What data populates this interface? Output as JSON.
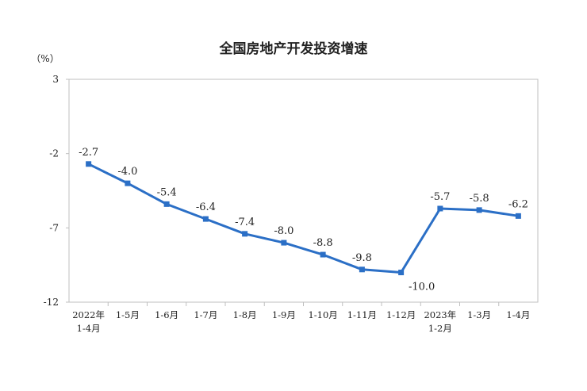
{
  "chart_data": {
    "type": "line",
    "title": "全国房地产开发投资增速",
    "ylabel": "（%）",
    "xlabel": "",
    "ylim": [
      -12,
      3
    ],
    "yticks": [
      3,
      -2,
      -7,
      -12
    ],
    "grid": false,
    "categories": [
      [
        "2022年",
        "1-4月"
      ],
      [
        "1-5月"
      ],
      [
        "1-6月"
      ],
      [
        "1-7月"
      ],
      [
        "1-8月"
      ],
      [
        "1-9月"
      ],
      [
        "1-10月"
      ],
      [
        "1-11月"
      ],
      [
        "1-12月"
      ],
      [
        "2023年",
        "1-2月"
      ],
      [
        "1-3月"
      ],
      [
        "1-4月"
      ]
    ],
    "series": [
      {
        "values": [
          -2.7,
          -4.0,
          -5.4,
          -6.4,
          -7.4,
          -8.0,
          -8.8,
          -9.8,
          -10.0,
          -5.7,
          -5.8,
          -6.2
        ],
        "labels": [
          "-2.7",
          "-4.0",
          "-5.4",
          "-6.4",
          "-7.4",
          "-8.0",
          "-8.8",
          "-9.8",
          "-10.0",
          "-5.7",
          "-5.8",
          "-6.2"
        ],
        "color": "#2b6fc6"
      }
    ]
  }
}
